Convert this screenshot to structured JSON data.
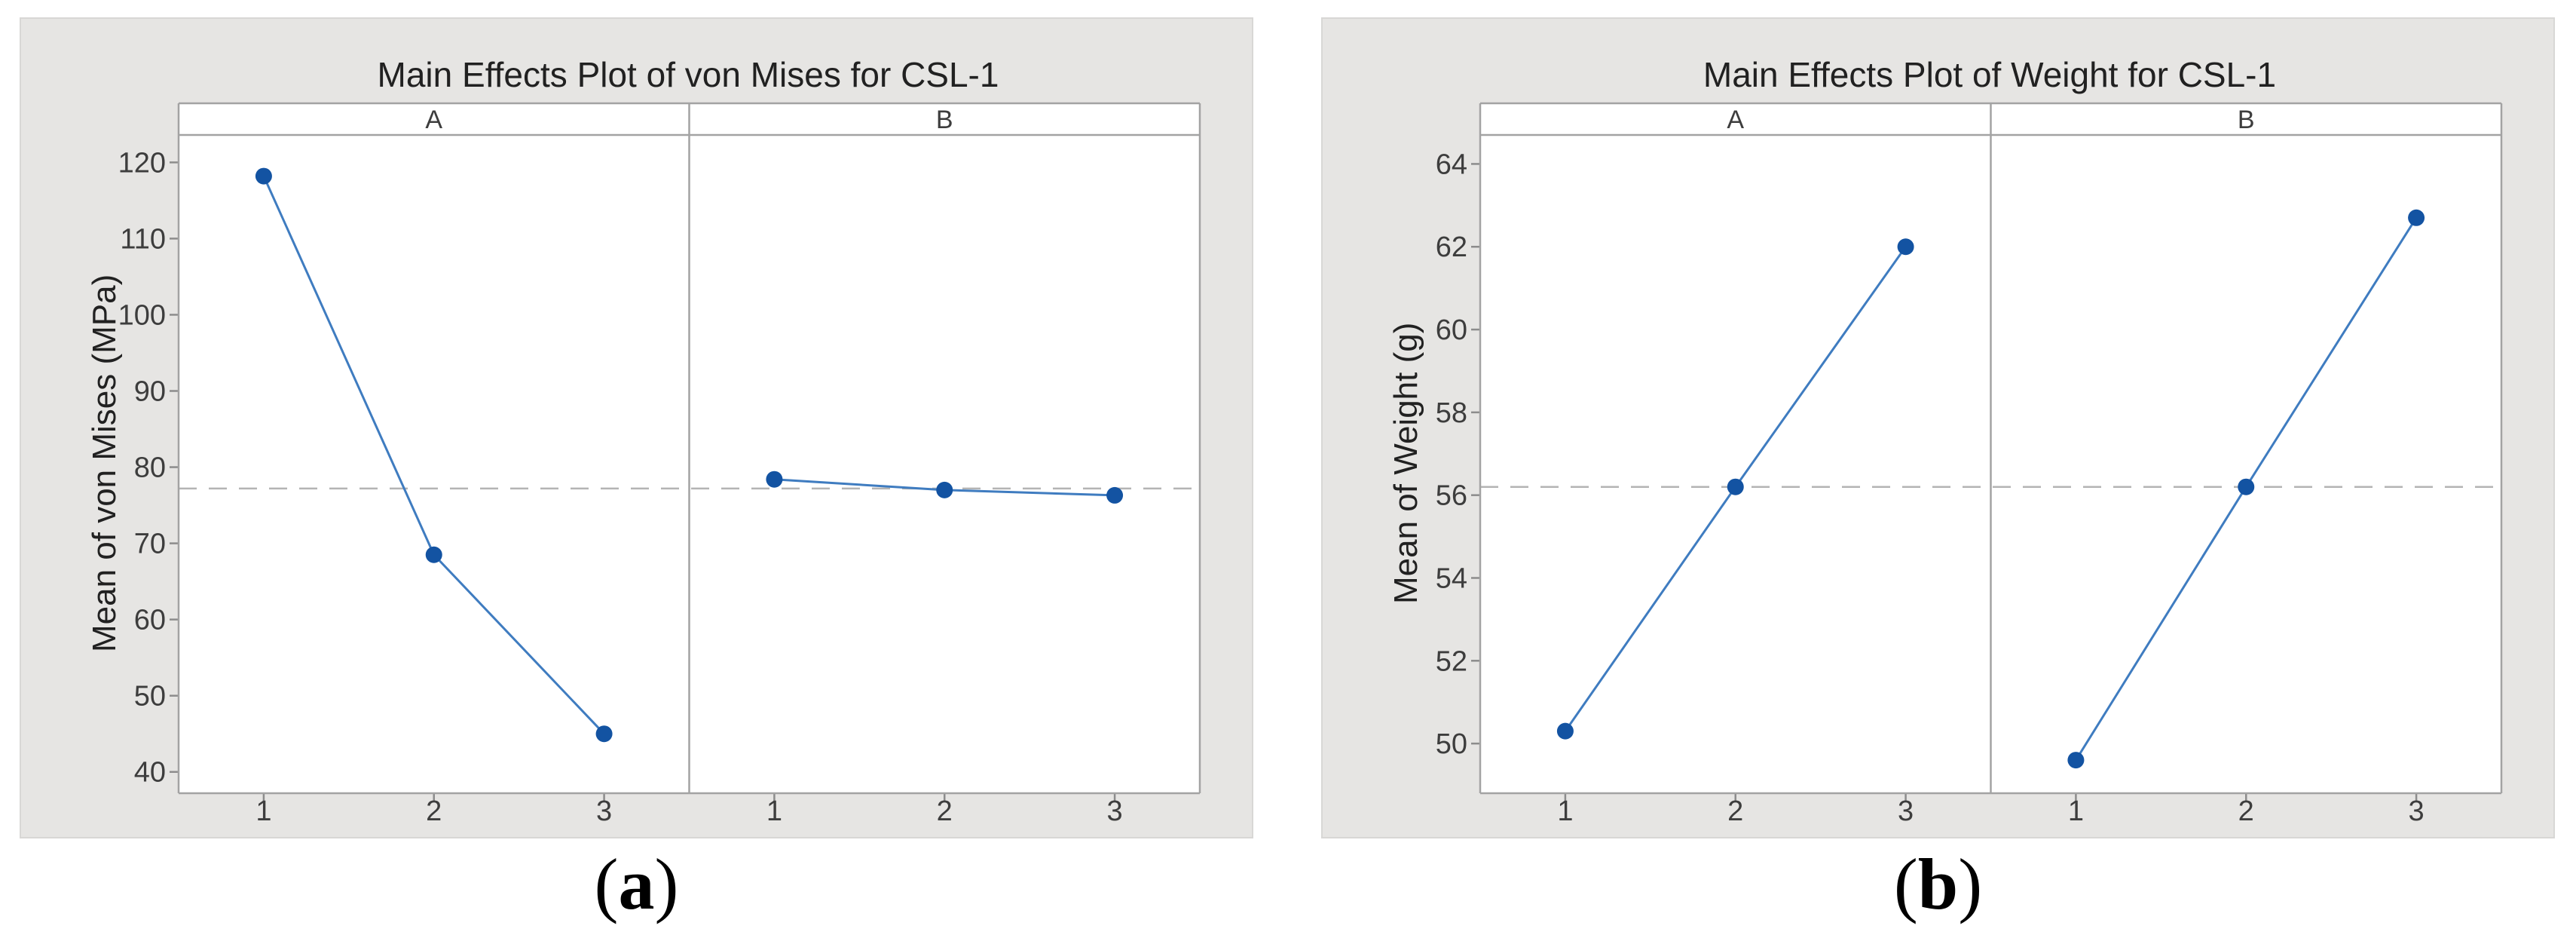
{
  "page": {
    "background": "#ffffff"
  },
  "figure_labels": {
    "a": {
      "open": "(",
      "letter": "a",
      "close": ")"
    },
    "b": {
      "open": "(",
      "letter": "b",
      "close": ")"
    }
  },
  "chart_data": [
    {
      "type": "line",
      "title": "Main Effects Plot of von Mises for CSL-1",
      "ylabel": "Mean of von Mises (MPa)",
      "xlabel": "",
      "categories": [
        "1",
        "2",
        "3"
      ],
      "panels": [
        {
          "label": "A",
          "values": [
            118.2,
            68.5,
            45.0
          ]
        },
        {
          "label": "B",
          "values": [
            78.4,
            77.0,
            76.3
          ]
        }
      ],
      "y_ticks": [
        40,
        50,
        60,
        70,
        80,
        90,
        100,
        110,
        120
      ],
      "ylim": [
        37.2,
        123.6
      ],
      "mean_line": 77.2,
      "grid": "off",
      "legend": "none",
      "colors": {
        "line": "#3f7cc0",
        "marker": "#1353a2",
        "mean_dash": "#b4b4b4",
        "panel_border": "#a3a3a3",
        "tick_mark": "#8c8c8c",
        "figure_bg": "#e6e5e3",
        "plot_bg": "#ffffff",
        "tick_text": "#3d3d3d",
        "title_text": "#212121"
      }
    },
    {
      "type": "line",
      "title": "Main Effects Plot of Weight for CSL-1",
      "ylabel": "Mean of Weight (g)",
      "xlabel": "",
      "categories": [
        "1",
        "2",
        "3"
      ],
      "panels": [
        {
          "label": "A",
          "values": [
            50.3,
            56.2,
            62.0
          ]
        },
        {
          "label": "B",
          "values": [
            49.6,
            56.2,
            62.7
          ]
        }
      ],
      "y_ticks": [
        50,
        52,
        54,
        56,
        58,
        60,
        62,
        64
      ],
      "ylim": [
        48.8,
        64.7
      ],
      "mean_line": 56.2,
      "grid": "off",
      "legend": "none",
      "colors": {
        "line": "#3f7cc0",
        "marker": "#1353a2",
        "mean_dash": "#b4b4b4",
        "panel_border": "#a3a3a3",
        "tick_mark": "#8c8c8c",
        "figure_bg": "#e6e5e3",
        "plot_bg": "#ffffff",
        "tick_text": "#3d3d3d",
        "title_text": "#212121"
      }
    }
  ]
}
